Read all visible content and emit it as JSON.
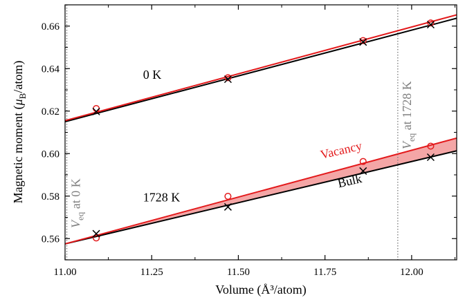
{
  "chart_data": {
    "type": "scatter",
    "xlabel": "Volume (Å³/atom)",
    "ylabel": "Magnetic moment (μB/atom)",
    "xlim": [
      11.0,
      12.13
    ],
    "ylim": [
      0.55,
      0.67
    ],
    "x_ticks": [
      "11.00",
      "11.25",
      "11.50",
      "11.75",
      "12.00"
    ],
    "y_ticks": [
      "0.56",
      "0.58",
      "0.60",
      "0.62",
      "0.64",
      "0.66"
    ],
    "series": [
      {
        "name": "Vacancy",
        "temperature": "0 K",
        "color": "#e31a1c",
        "marker": "circle",
        "x": [
          11.09,
          11.47,
          11.86,
          12.055
        ],
        "y": [
          0.6212,
          0.6357,
          0.6532,
          0.6615
        ]
      },
      {
        "name": "Bulk",
        "temperature": "0 K",
        "color": "#000000",
        "marker": "cross",
        "x": [
          11.09,
          11.47,
          11.86,
          12.055
        ],
        "y": [
          0.6198,
          0.635,
          0.6525,
          0.6607
        ]
      },
      {
        "name": "Vacancy",
        "temperature": "1728 K",
        "color": "#e31a1c",
        "marker": "circle",
        "x": [
          11.09,
          11.47,
          11.86,
          12.055
        ],
        "y": [
          0.5603,
          0.5799,
          0.5963,
          0.6035
        ]
      },
      {
        "name": "Bulk",
        "temperature": "1728 K",
        "color": "#000000",
        "marker": "cross",
        "x": [
          11.09,
          11.47,
          11.86,
          12.055
        ],
        "y": [
          0.5623,
          0.5749,
          0.5918,
          0.5983
        ]
      }
    ],
    "fit_lines": [
      {
        "series": "Vacancy 0 K",
        "color": "#e31a1c",
        "x": [
          11.0,
          12.13
        ],
        "y": [
          0.6155,
          0.6653
        ]
      },
      {
        "series": "Bulk 0 K",
        "color": "#000000",
        "x": [
          11.0,
          12.13
        ],
        "y": [
          0.615,
          0.6637
        ]
      },
      {
        "series": "Vacancy 1728 K",
        "color": "#e31a1c",
        "x": [
          11.0,
          12.13
        ],
        "y": [
          0.5575,
          0.6073
        ]
      },
      {
        "series": "Bulk 1728 K",
        "color": "#000000",
        "x": [
          11.0,
          12.13
        ],
        "y": [
          0.5575,
          0.6013
        ]
      }
    ],
    "shaded_region": {
      "between": [
        "Vacancy 1728 K",
        "Bulk 1728 K"
      ],
      "color": "#f4a6a6"
    },
    "vlines": [
      {
        "x": 11.005,
        "label_main": "V",
        "label_sub": "eq",
        "label_rest": " at 0 K"
      },
      {
        "x": 11.96,
        "label_main": "V",
        "label_sub": "eq",
        "label_rest": " at 1728 K"
      }
    ],
    "annotations": [
      {
        "text": "0 K",
        "x": 11.225,
        "y": 0.6352,
        "color": "#000000"
      },
      {
        "text": "1728 K",
        "x": 11.225,
        "y": 0.5775,
        "color": "#000000"
      },
      {
        "text": "Vacancy",
        "x": 11.74,
        "y": 0.5975,
        "color": "#e31a1c",
        "rotate": -13
      },
      {
        "text": "Bulk",
        "x": 11.79,
        "y": 0.584,
        "color": "#000000",
        "rotate": -13
      }
    ],
    "grid": false,
    "vline_color": "#808080"
  }
}
